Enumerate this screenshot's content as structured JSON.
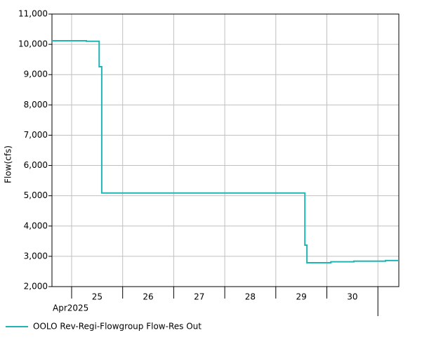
{
  "chart_data": {
    "type": "line",
    "y_label": "Flow(cfs)",
    "x": [
      24.615,
      25.29,
      25.29,
      25.54,
      25.54,
      25.59,
      25.59,
      29.57,
      29.57,
      29.61,
      29.61,
      30.08,
      30.08,
      30.53,
      30.53,
      31.15,
      31.15,
      31.41
    ],
    "series": [
      {
        "name": "OOLO Rev-Regi-Flowgroup Flow-Res Out",
        "color": "#20b5b5",
        "values": [
          10120,
          10120,
          10100,
          10100,
          9260,
          9260,
          5090,
          5090,
          3370,
          3370,
          2790,
          2790,
          2820,
          2820,
          2840,
          2840,
          2860,
          2860
        ]
      }
    ],
    "xlim": [
      24.615,
      31.41
    ],
    "xgrid": [
      25,
      26,
      27,
      28,
      29,
      30,
      31
    ],
    "xticks": [
      {
        "value": 25.5,
        "label": "25"
      },
      {
        "value": 26.5,
        "label": "26"
      },
      {
        "value": 27.5,
        "label": "27"
      },
      {
        "value": 28.5,
        "label": "28"
      },
      {
        "value": 29.5,
        "label": "29"
      },
      {
        "value": 30.5,
        "label": "30"
      }
    ],
    "month_label": "Apr2025",
    "month_ticks": [
      31
    ],
    "ylim": [
      2000,
      11000
    ],
    "yticks": [
      {
        "value": 2000,
        "label": "2,000"
      },
      {
        "value": 3000,
        "label": "3,000"
      },
      {
        "value": 4000,
        "label": "4,000"
      },
      {
        "value": 5000,
        "label": "5,000"
      },
      {
        "value": 6000,
        "label": "6,000"
      },
      {
        "value": 7000,
        "label": "7,000"
      },
      {
        "value": 8000,
        "label": "8,000"
      },
      {
        "value": 9000,
        "label": "9,000"
      },
      {
        "value": 10000,
        "label": "10,000"
      },
      {
        "value": 11000,
        "label": "11,000"
      }
    ],
    "grid": true
  }
}
